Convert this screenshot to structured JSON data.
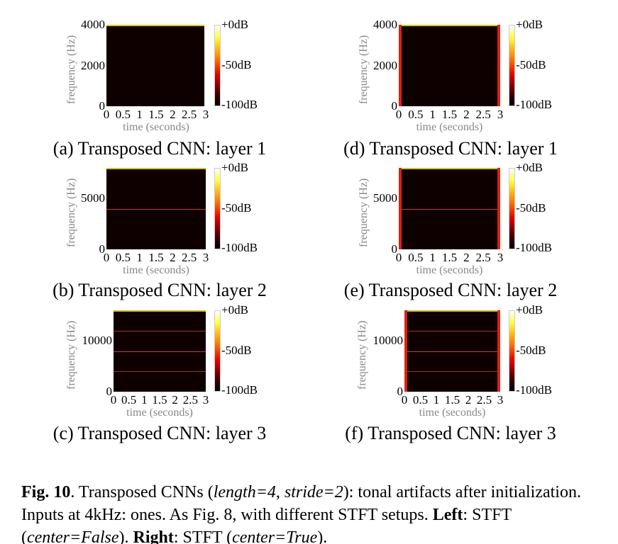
{
  "xlabel": "time (seconds)",
  "ylabel": "frequency (Hz)",
  "xticks": [
    "0",
    "0.5",
    "1",
    "1.5",
    "2",
    "2.5",
    "3"
  ],
  "colorbar": [
    "+0dB",
    "-50dB",
    "-100dB"
  ],
  "panels": [
    {
      "caption": "(a) Transposed CNN: layer 1",
      "ymax": 4000,
      "yticks": [
        "0",
        "2000",
        "4000"
      ],
      "tones_hz": [],
      "edges": false
    },
    {
      "caption": "(b) Transposed CNN: layer 2",
      "ymax": 8000,
      "yticks": [
        "0",
        "5000"
      ],
      "tones_hz": [
        4000
      ],
      "edges": false
    },
    {
      "caption": "(c) Transposed CNN: layer 3",
      "ymax": 16000,
      "yticks": [
        "0",
        "10000"
      ],
      "tones_hz": [
        4000,
        8000,
        12000
      ],
      "edges": false
    },
    {
      "caption": "(d) Transposed CNN: layer 1",
      "ymax": 4000,
      "yticks": [
        "0",
        "2000",
        "4000"
      ],
      "tones_hz": [],
      "edges": true
    },
    {
      "caption": "(e) Transposed CNN: layer 2",
      "ymax": 8000,
      "yticks": [
        "0",
        "5000"
      ],
      "tones_hz": [
        4000
      ],
      "edges": true
    },
    {
      "caption": "(f) Transposed CNN: layer 3",
      "ymax": 16000,
      "yticks": [
        "0",
        "10000"
      ],
      "tones_hz": [
        4000,
        8000,
        12000
      ],
      "edges": true
    }
  ],
  "figure_caption": {
    "label": "Fig. 10",
    "t1": ". Transposed CNNs (",
    "i1": "length=4",
    "t2": ", ",
    "i2": "stride=2",
    "t3": "): tonal artifacts after initialization. Inputs at 4kHz: ones. As Fig. 8, with different STFT setups. ",
    "b1": "Left",
    "t4": ": STFT (",
    "i3": "center=False",
    "t5": "). ",
    "b2": "Right",
    "t6": ": STFT (",
    "i4": "center=True",
    "t7": ")."
  }
}
